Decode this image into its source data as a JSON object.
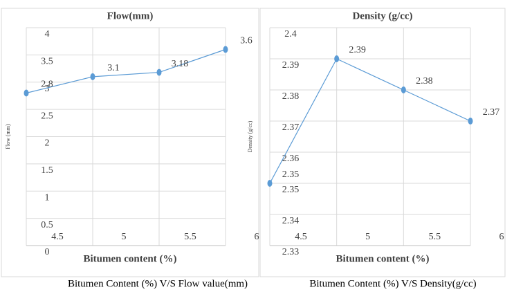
{
  "chart_data": [
    {
      "type": "line",
      "title": "Flow(mm)",
      "ylabel": "Flow (mm)",
      "xlabel": "Bitumen content (%)",
      "caption": "Bitumen Content (%) V/S Flow value(mm)",
      "categories": [
        "4.5",
        "5",
        "5.5",
        "6"
      ],
      "values": [
        2.8,
        3.1,
        3.18,
        3.6
      ],
      "color": "#5b9bd5",
      "ylim": [
        0,
        4
      ],
      "yticks": [
        0,
        0.5,
        1,
        1.5,
        2,
        2.5,
        3,
        3.5,
        4
      ],
      "grid": true
    },
    {
      "type": "line",
      "title": "Density (g/cc)",
      "ylabel": "Density (g/cc)",
      "xlabel": "Bitumen content (%)",
      "caption": "Bitumen Content (%) V/S Density(g/cc)",
      "categories": [
        "4.5",
        "5",
        "5.5",
        "6"
      ],
      "values": [
        2.35,
        2.39,
        2.38,
        2.37
      ],
      "color": "#5b9bd5",
      "ylim": [
        2.33,
        2.4
      ],
      "yticks": [
        2.33,
        2.34,
        2.35,
        2.36,
        2.37,
        2.38,
        2.39,
        2.4
      ],
      "grid": true
    }
  ]
}
